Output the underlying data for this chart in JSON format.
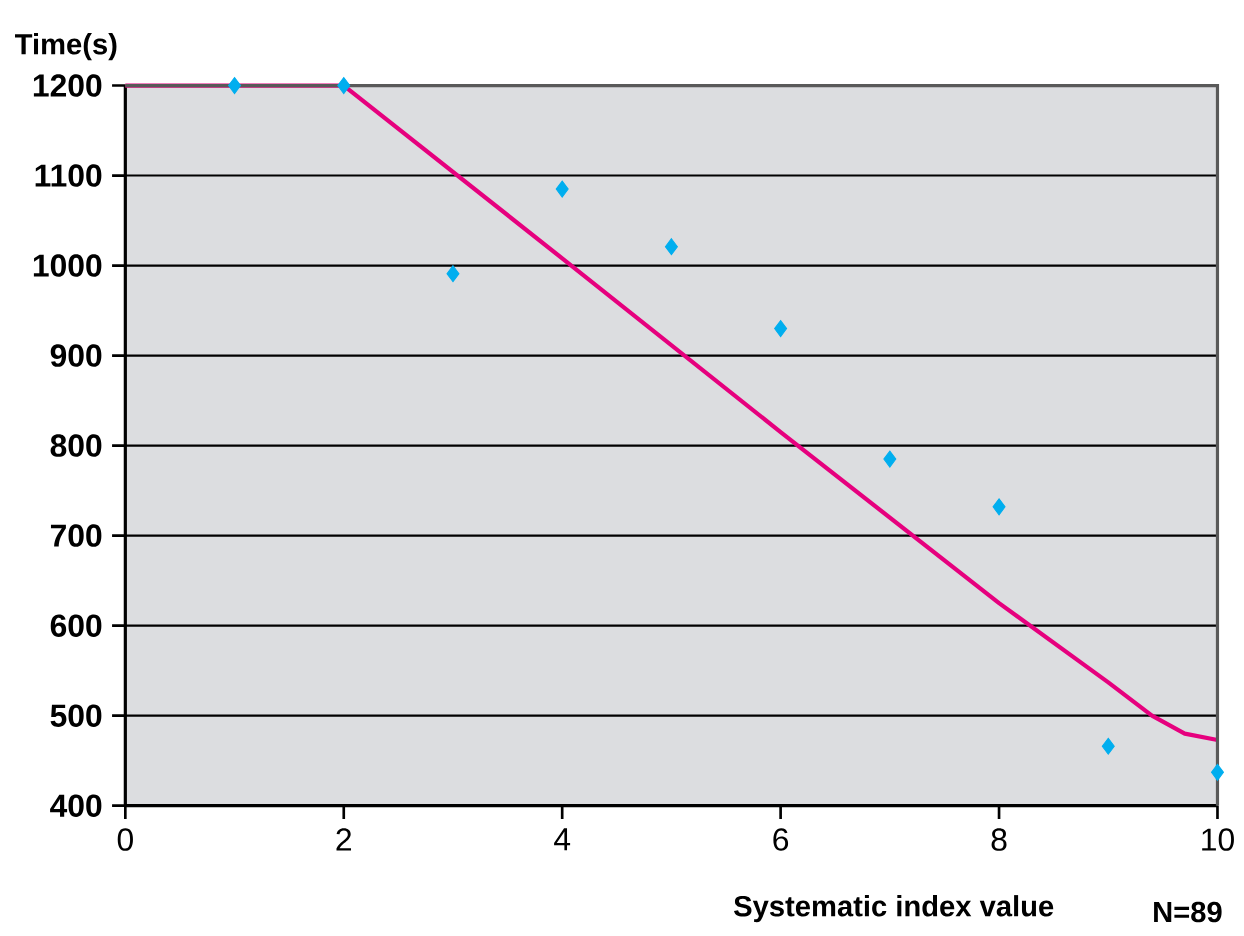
{
  "chart_data": {
    "type": "scatter",
    "ylabel": "Time(s)",
    "xlabel": "Systematic index value",
    "annotations": [
      "N=89"
    ],
    "xlim": [
      0,
      10
    ],
    "ylim": [
      400,
      1200
    ],
    "xticks": [
      0,
      2,
      4,
      6,
      8,
      10
    ],
    "yticks": [
      400,
      500,
      600,
      700,
      800,
      900,
      1000,
      1100,
      1200
    ],
    "grid": "y",
    "series": [
      {
        "color": "#00aeef",
        "marker": "diamond",
        "x": [
          1,
          2,
          3,
          4,
          5,
          6,
          7,
          8,
          9,
          10
        ],
        "values": [
          1200,
          1200,
          991,
          1085,
          1021,
          930,
          785,
          732,
          466,
          437
        ]
      },
      {
        "type": "line",
        "color": "#e6007e",
        "marker": "none",
        "line_style": "solid",
        "x": [
          0,
          2,
          4,
          6,
          8,
          9,
          9.4,
          9.7,
          10
        ],
        "values": [
          1200,
          1200,
          1008,
          815,
          625,
          537,
          500,
          480,
          473
        ]
      }
    ]
  }
}
